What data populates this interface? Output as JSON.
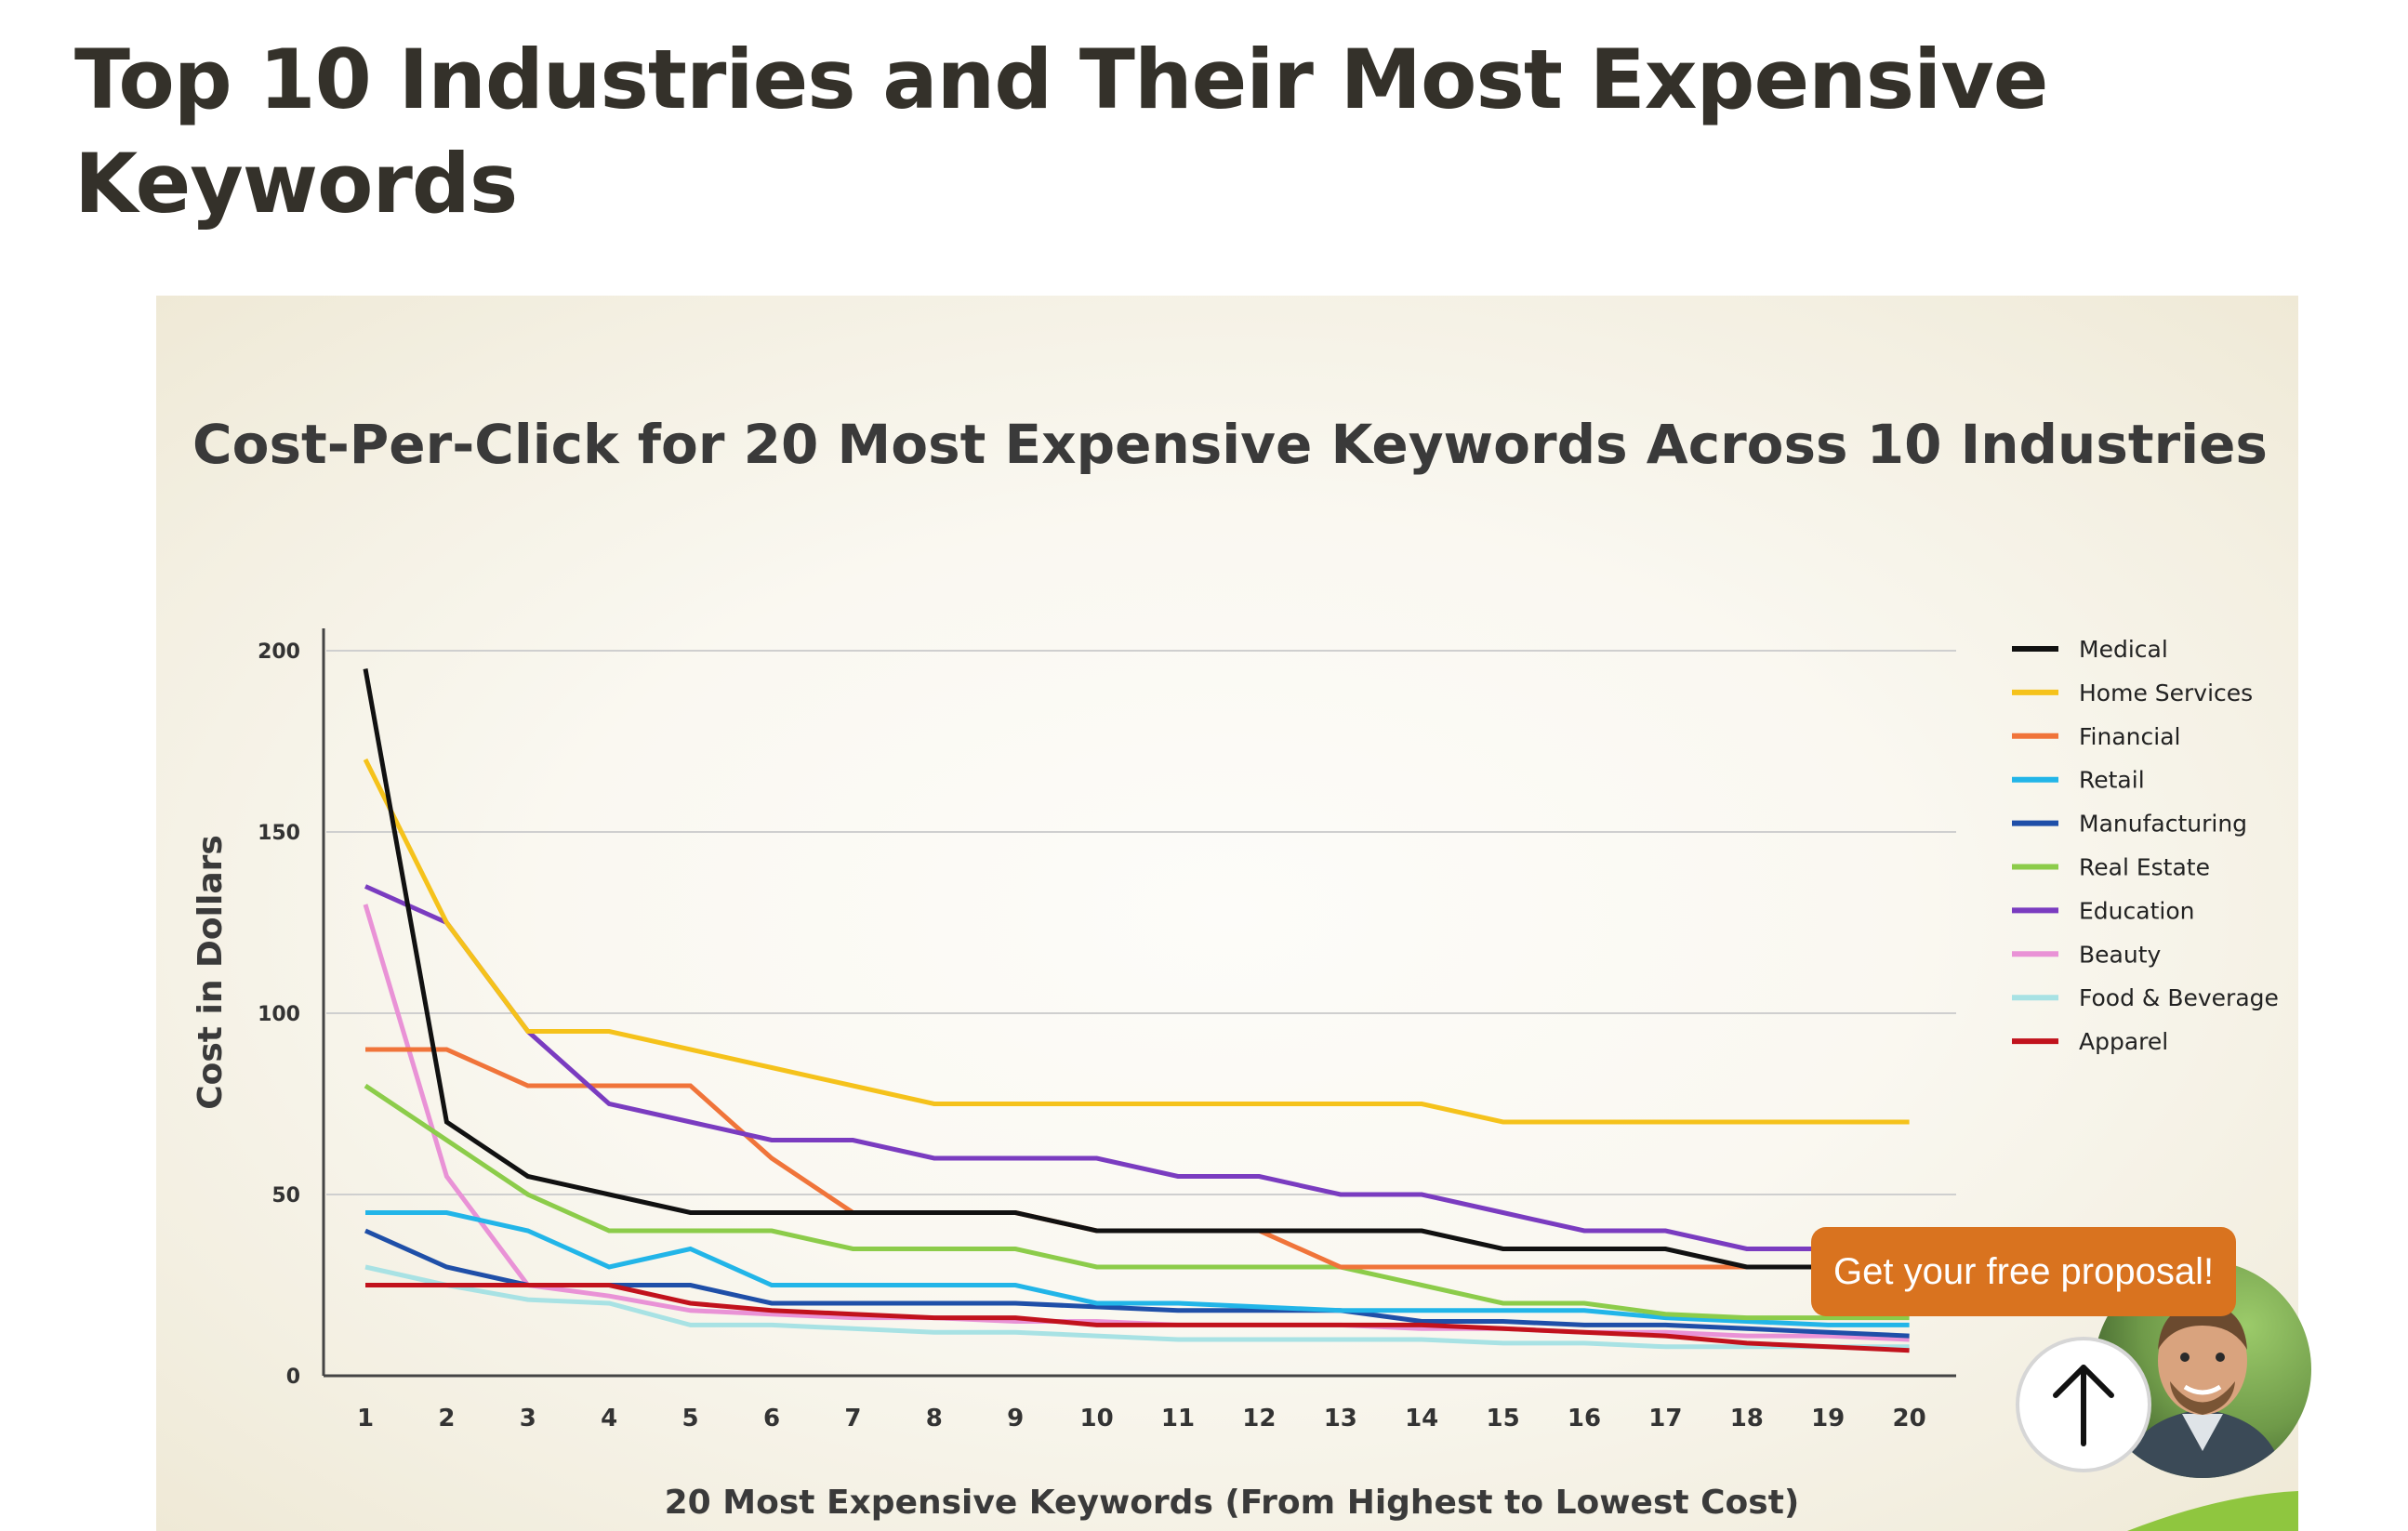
{
  "page": {
    "title": "Top 10 Industries and Their Most Expensive Keywords"
  },
  "widgets": {
    "proposal_label": "Get your free proposal!",
    "scroll_top_icon": "arrow-up-icon",
    "avatar_icon": "person-avatar",
    "accent_color": "#d9731f"
  },
  "chart_data": {
    "type": "line",
    "title": "Cost-Per-Click for 20 Most Expensive Keywords Across 10 Industries",
    "xlabel": "20 Most Expensive Keywords (From Highest to Lowest Cost)",
    "ylabel": "Cost in Dollars",
    "x": [
      1,
      2,
      3,
      4,
      5,
      6,
      7,
      8,
      9,
      10,
      11,
      12,
      13,
      14,
      15,
      16,
      17,
      18,
      19,
      20
    ],
    "yticks": [
      0,
      50,
      100,
      150,
      200
    ],
    "ylim": [
      0,
      200
    ],
    "grid": "horizontal",
    "legend_position": "right",
    "series": [
      {
        "name": "Medical",
        "color": "#111111",
        "values": [
          195,
          70,
          55,
          50,
          45,
          45,
          45,
          45,
          45,
          40,
          40,
          40,
          40,
          40,
          35,
          35,
          35,
          30,
          30,
          30
        ]
      },
      {
        "name": "Home Services",
        "color": "#f5c21b",
        "values": [
          170,
          125,
          95,
          95,
          90,
          85,
          80,
          75,
          75,
          75,
          75,
          75,
          75,
          75,
          70,
          70,
          70,
          70,
          70,
          70
        ]
      },
      {
        "name": "Financial",
        "color": "#f0743a",
        "values": [
          90,
          90,
          80,
          80,
          80,
          60,
          45,
          45,
          45,
          40,
          40,
          40,
          30,
          30,
          30,
          30,
          30,
          30,
          30,
          30
        ]
      },
      {
        "name": "Retail",
        "color": "#22b5e8",
        "values": [
          45,
          45,
          40,
          30,
          35,
          25,
          25,
          25,
          25,
          20,
          20,
          19,
          18,
          18,
          18,
          18,
          16,
          15,
          14,
          14
        ]
      },
      {
        "name": "Manufacturing",
        "color": "#1f4fa8",
        "values": [
          40,
          30,
          25,
          25,
          25,
          20,
          20,
          20,
          20,
          19,
          18,
          18,
          18,
          15,
          15,
          14,
          14,
          13,
          12,
          11
        ]
      },
      {
        "name": "Real Estate",
        "color": "#8ccc4a",
        "values": [
          80,
          65,
          50,
          40,
          40,
          40,
          35,
          35,
          35,
          30,
          30,
          30,
          30,
          25,
          20,
          20,
          17,
          16,
          16,
          16
        ]
      },
      {
        "name": "Education",
        "color": "#7a3cc0",
        "values": [
          135,
          125,
          95,
          75,
          70,
          65,
          65,
          60,
          60,
          60,
          55,
          55,
          50,
          50,
          45,
          40,
          40,
          35,
          35,
          35
        ]
      },
      {
        "name": "Beauty",
        "color": "#e992d6",
        "values": [
          130,
          55,
          25,
          22,
          18,
          17,
          16,
          16,
          15,
          15,
          14,
          14,
          14,
          13,
          13,
          12,
          12,
          11,
          11,
          10
        ]
      },
      {
        "name": "Food & Beverage",
        "color": "#a8e2e4",
        "values": [
          30,
          25,
          21,
          20,
          14,
          14,
          13,
          12,
          12,
          11,
          10,
          10,
          10,
          10,
          9,
          9,
          8,
          8,
          8,
          8
        ]
      },
      {
        "name": "Apparel",
        "color": "#c1121c",
        "values": [
          25,
          25,
          25,
          25,
          20,
          18,
          17,
          16,
          16,
          14,
          14,
          14,
          14,
          14,
          13,
          12,
          11,
          9,
          8,
          7
        ]
      }
    ]
  }
}
